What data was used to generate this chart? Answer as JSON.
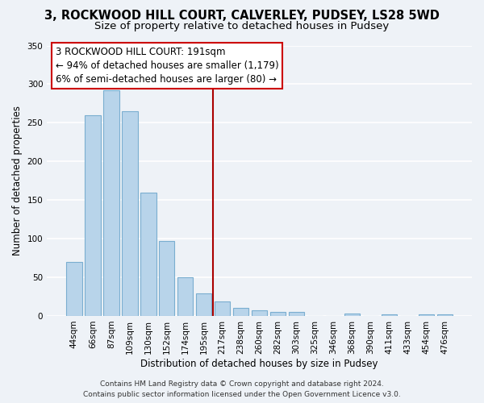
{
  "title": "3, ROCKWOOD HILL COURT, CALVERLEY, PUDSEY, LS28 5WD",
  "subtitle": "Size of property relative to detached houses in Pudsey",
  "xlabel": "Distribution of detached houses by size in Pudsey",
  "ylabel": "Number of detached properties",
  "bar_labels": [
    "44sqm",
    "66sqm",
    "87sqm",
    "109sqm",
    "130sqm",
    "152sqm",
    "174sqm",
    "195sqm",
    "217sqm",
    "238sqm",
    "260sqm",
    "282sqm",
    "303sqm",
    "325sqm",
    "346sqm",
    "368sqm",
    "390sqm",
    "411sqm",
    "433sqm",
    "454sqm",
    "476sqm"
  ],
  "bar_values": [
    70,
    260,
    292,
    265,
    160,
    97,
    50,
    29,
    19,
    10,
    7,
    5,
    5,
    0,
    0,
    3,
    0,
    2,
    0,
    2,
    2
  ],
  "bar_color": "#b8d4ea",
  "bar_edge_color": "#7aaed0",
  "vline_index": 7,
  "vline_color": "#aa0000",
  "ylim": [
    0,
    350
  ],
  "yticks": [
    0,
    50,
    100,
    150,
    200,
    250,
    300,
    350
  ],
  "annotation_title": "3 ROCKWOOD HILL COURT: 191sqm",
  "annotation_line1": "← 94% of detached houses are smaller (1,179)",
  "annotation_line2": "6% of semi-detached houses are larger (80) →",
  "annotation_box_facecolor": "#ffffff",
  "annotation_box_edgecolor": "#cc0000",
  "footer_line1": "Contains HM Land Registry data © Crown copyright and database right 2024.",
  "footer_line2": "Contains public sector information licensed under the Open Government Licence v3.0.",
  "fig_facecolor": "#eef2f7",
  "plot_facecolor": "#eef2f7",
  "grid_color": "#ffffff",
  "title_fontsize": 10.5,
  "subtitle_fontsize": 9.5,
  "axis_label_fontsize": 8.5,
  "tick_fontsize": 7.5,
  "annotation_fontsize": 8.5,
  "footer_fontsize": 6.5
}
